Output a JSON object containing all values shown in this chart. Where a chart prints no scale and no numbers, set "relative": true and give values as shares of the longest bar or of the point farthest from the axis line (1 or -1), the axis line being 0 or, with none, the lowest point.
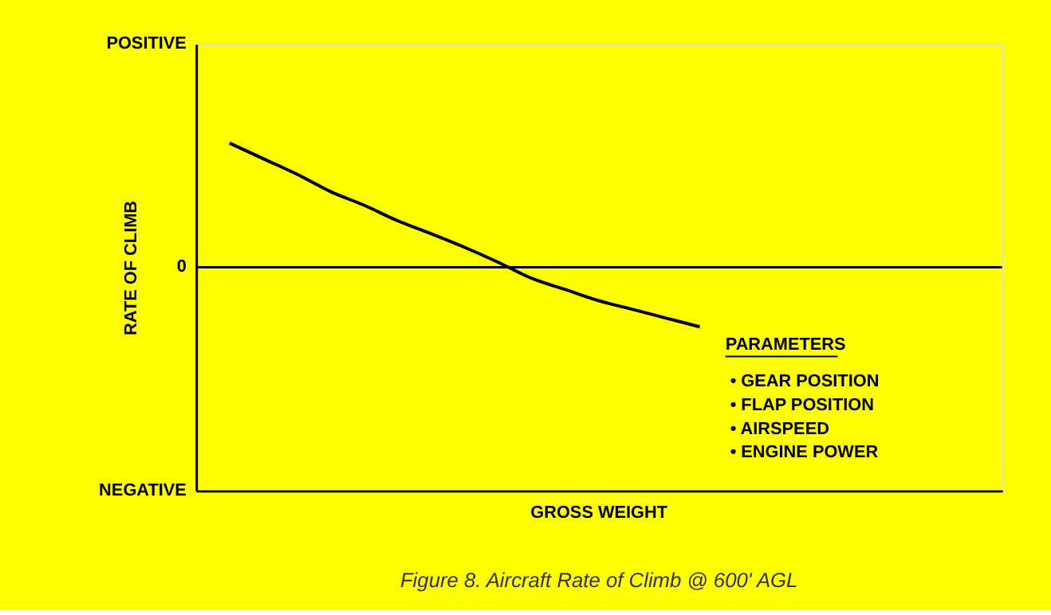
{
  "chart_data": {
    "type": "line",
    "title": "Figure 8.  Aircraft Rate of Climb @ 600' AGL",
    "ylabel": "RATE OF CLIMB",
    "relative": true,
    "categories": [
      null,
      null,
      null,
      null,
      null,
      null,
      null,
      null,
      null,
      null,
      null,
      null,
      null,
      null,
      null,
      null,
      null,
      null,
      null,
      null,
      null,
      null,
      null,
      null,
      null
    ],
    "series": [
      {
        "color": "#000000",
        "values": [
          null,
          1,
          0.875,
          0.75,
          0.61,
          0.5,
          0.375,
          0.27,
          0.16,
          0.04,
          -0.09,
          -0.18,
          -0.27,
          -0.34,
          -0.41,
          -0.48,
          null,
          null,
          null,
          null,
          null,
          null,
          null,
          null,
          null
        ]
      }
    ],
    "ref_lines": [
      {
        "axis": "y",
        "value": 0,
        "color": "#000000"
      }
    ],
    "annotations": [
      "POSITIVE",
      "0",
      "NEGATIVE",
      "GROSS WEIGHT",
      "PARAMETERS",
      "• GEAR POSITION",
      "• FLAP POSITION",
      "• AIRSPEED",
      "• ENGINE POWER"
    ],
    "grid": false,
    "marker": "none",
    "line_style": "solid"
  }
}
